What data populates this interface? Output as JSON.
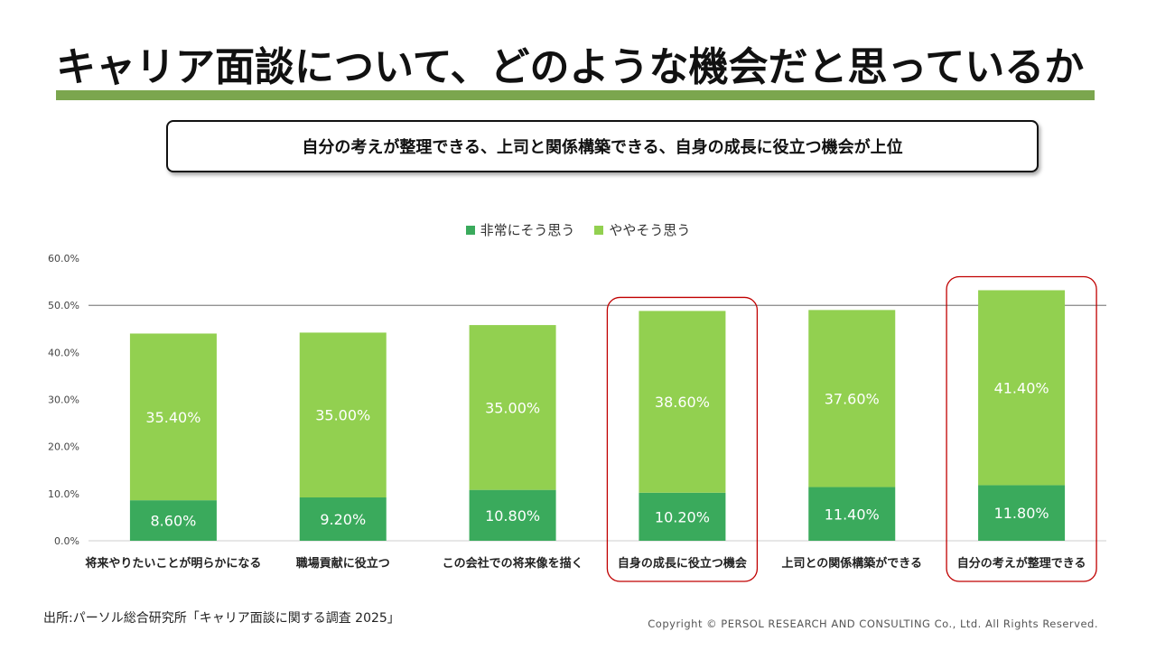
{
  "title": "キャリア面談について、どのような機会だと思っているか",
  "summary": "自分の考えが整理できる、上司と関係構築できる、自身の成長に役立つ機会が上位",
  "colors": {
    "accent": "#7ba64e",
    "strong": "#3aaa5c",
    "somewhat": "#92d050",
    "highlight": "#c00000"
  },
  "chart_data": {
    "type": "bar",
    "stacked": true,
    "categories": [
      "将来やりたいことが明らかになる",
      "職場貢献に役立つ",
      "この会社での将来像を描く",
      "自身の成長に役立つ機会",
      "上司との関係構築ができる",
      "自分の考えが整理できる"
    ],
    "series": [
      {
        "name": "非常にそう思う",
        "values": [
          8.6,
          9.2,
          10.8,
          10.2,
          11.4,
          11.8
        ],
        "labels": [
          "8.60%",
          "9.20%",
          "10.80%",
          "10.20%",
          "11.40%",
          "11.80%"
        ],
        "color": "#3aaa5c"
      },
      {
        "name": "ややそう思う",
        "values": [
          35.4,
          35.0,
          35.0,
          38.6,
          37.6,
          41.4
        ],
        "labels": [
          "35.40%",
          "35.00%",
          "35.00%",
          "38.60%",
          "37.60%",
          "41.40%"
        ],
        "color": "#92d050"
      }
    ],
    "y_ticks": [
      "0.0%",
      "10.0%",
      "20.0%",
      "30.0%",
      "40.0%",
      "50.0%",
      "60.0%"
    ],
    "ylim": [
      0,
      60
    ],
    "reference_line": 50,
    "highlighted": [
      3,
      5
    ],
    "legend_position": "top-center"
  },
  "source": "出所:パーソル総合研究所「キャリア面談に関する調査 2025」",
  "copyright": "Copyright © PERSOL  RESEARCH AND CONSULTING Co., Ltd. All Rights Reserved."
}
